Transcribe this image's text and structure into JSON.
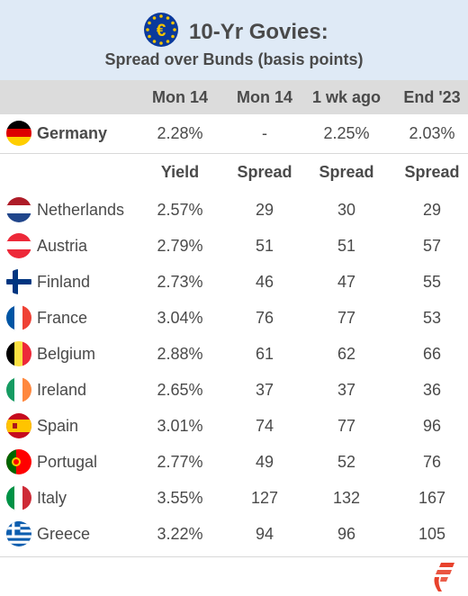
{
  "header": {
    "title": "10-Yr Govies:",
    "subtitle": "Spread over Bunds (basis points)"
  },
  "columns": [
    "Mon 14",
    "Mon 14",
    "1 wk ago",
    "End '23"
  ],
  "germany": {
    "name": "Germany",
    "flag_icon": "germany-flag-icon",
    "values": [
      "2.28%",
      "-",
      "2.25%",
      "2.03%"
    ]
  },
  "subheaders": [
    "Yield",
    "Spread",
    "Spread",
    "Spread"
  ],
  "rows": [
    {
      "name": "Netherlands",
      "flag_icon": "netherlands-flag-icon",
      "values": [
        "2.57%",
        "29",
        "30",
        "29"
      ]
    },
    {
      "name": "Austria",
      "flag_icon": "austria-flag-icon",
      "values": [
        "2.79%",
        "51",
        "51",
        "57"
      ]
    },
    {
      "name": "Finland",
      "flag_icon": "finland-flag-icon",
      "values": [
        "2.73%",
        "46",
        "47",
        "55"
      ]
    },
    {
      "name": "France",
      "flag_icon": "france-flag-icon",
      "values": [
        "3.04%",
        "76",
        "77",
        "53"
      ]
    },
    {
      "name": "Belgium",
      "flag_icon": "belgium-flag-icon",
      "values": [
        "2.88%",
        "61",
        "62",
        "66"
      ]
    },
    {
      "name": "Ireland",
      "flag_icon": "ireland-flag-icon",
      "values": [
        "2.65%",
        "37",
        "37",
        "36"
      ]
    },
    {
      "name": "Spain",
      "flag_icon": "spain-flag-icon",
      "values": [
        "3.01%",
        "74",
        "77",
        "96"
      ]
    },
    {
      "name": "Portugal",
      "flag_icon": "portugal-flag-icon",
      "values": [
        "2.77%",
        "49",
        "52",
        "76"
      ]
    },
    {
      "name": "Italy",
      "flag_icon": "italy-flag-icon",
      "values": [
        "3.55%",
        "127",
        "132",
        "167"
      ]
    },
    {
      "name": "Greece",
      "flag_icon": "greece-flag-icon",
      "values": [
        "3.22%",
        "94",
        "96",
        "105"
      ]
    }
  ],
  "colors": {
    "header_bg": "#dfeaf6",
    "column_header_bg": "#dcdcdc",
    "text": "#4a4a4a",
    "brand_accent": "#e8422c",
    "euro_blue": "#0b3a9c",
    "euro_gold": "#f5c400"
  }
}
